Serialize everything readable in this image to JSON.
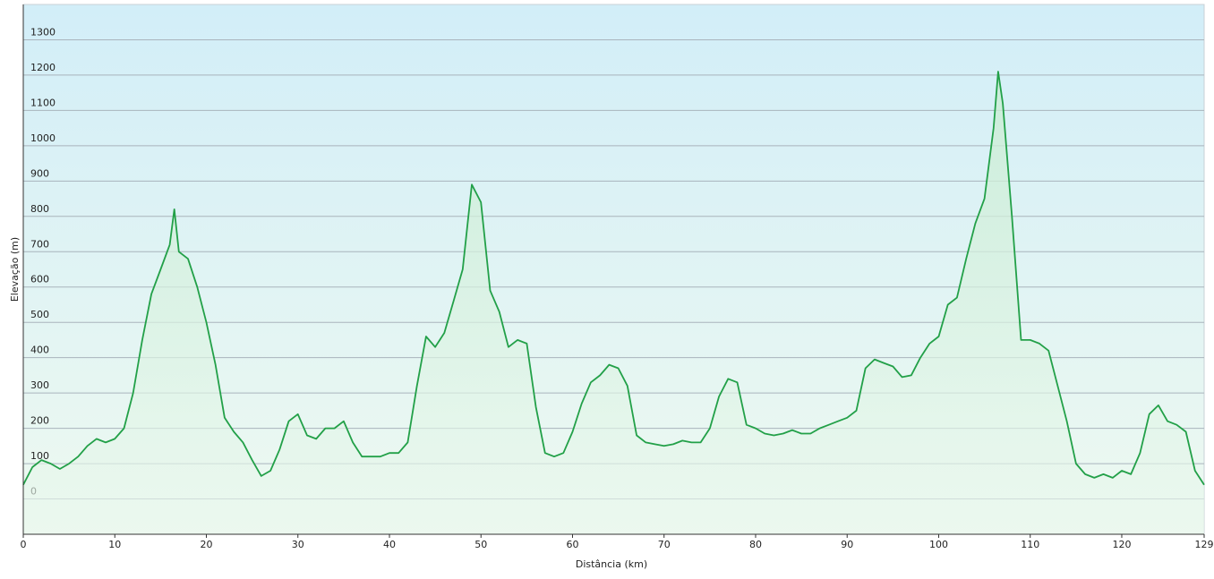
{
  "chart_data": {
    "type": "area",
    "x_label": "Distância  (km)",
    "y_label": "Elevação (m)",
    "color": "#22a048",
    "x": [
      0,
      1,
      2,
      3,
      4,
      5,
      6,
      7,
      8,
      9,
      10,
      11,
      12,
      13,
      14,
      15,
      16,
      16.5,
      17,
      18,
      19,
      20,
      21,
      22,
      23,
      24,
      25,
      26,
      27,
      28,
      29,
      30,
      31,
      32,
      33,
      34,
      35,
      36,
      37,
      38,
      39,
      40,
      41,
      42,
      43,
      44,
      45,
      46,
      47,
      48,
      49,
      50,
      51,
      52,
      53,
      54,
      55,
      56,
      57,
      58,
      59,
      60,
      61,
      62,
      63,
      64,
      65,
      66,
      67,
      68,
      69,
      70,
      71,
      72,
      73,
      74,
      75,
      76,
      77,
      78,
      79,
      80,
      81,
      82,
      83,
      84,
      85,
      86,
      87,
      88,
      89,
      90,
      91,
      92,
      93,
      94,
      95,
      96,
      97,
      98,
      99,
      100,
      101,
      102,
      103,
      104,
      105,
      106,
      106.5,
      107,
      108,
      109,
      110,
      111,
      112,
      113,
      114,
      115,
      116,
      117,
      118,
      119,
      120,
      121,
      122,
      123,
      124,
      125,
      126,
      127,
      128,
      129
    ],
    "values": [
      40,
      90,
      110,
      100,
      85,
      100,
      120,
      150,
      170,
      160,
      170,
      200,
      300,
      450,
      580,
      650,
      720,
      820,
      700,
      680,
      600,
      500,
      380,
      230,
      190,
      160,
      110,
      65,
      80,
      140,
      220,
      240,
      180,
      170,
      200,
      200,
      220,
      160,
      120,
      120,
      120,
      130,
      130,
      160,
      320,
      460,
      430,
      470,
      560,
      650,
      890,
      840,
      590,
      530,
      430,
      450,
      440,
      260,
      130,
      120,
      130,
      190,
      270,
      330,
      350,
      380,
      370,
      320,
      180,
      160,
      155,
      150,
      155,
      165,
      160,
      160,
      200,
      290,
      340,
      330,
      210,
      200,
      185,
      180,
      185,
      195,
      185,
      185,
      200,
      210,
      220,
      230,
      250,
      370,
      395,
      385,
      375,
      345,
      350,
      400,
      440,
      460,
      550,
      570,
      680,
      780,
      850,
      1050,
      1210,
      1120,
      800,
      450,
      450,
      440,
      420,
      320,
      220,
      100,
      70,
      60,
      70,
      60,
      80,
      70,
      130,
      240,
      265,
      220,
      210,
      190,
      80,
      40
    ],
    "xlim": [
      0,
      129
    ],
    "ylim": [
      -100,
      1400
    ],
    "xticks": [
      0,
      10,
      20,
      30,
      40,
      50,
      60,
      70,
      80,
      90,
      100,
      110,
      120,
      129
    ],
    "yticks": [
      0,
      100,
      200,
      300,
      400,
      500,
      600,
      700,
      800,
      900,
      1000,
      1100,
      1200,
      1300
    ],
    "grid": true
  }
}
